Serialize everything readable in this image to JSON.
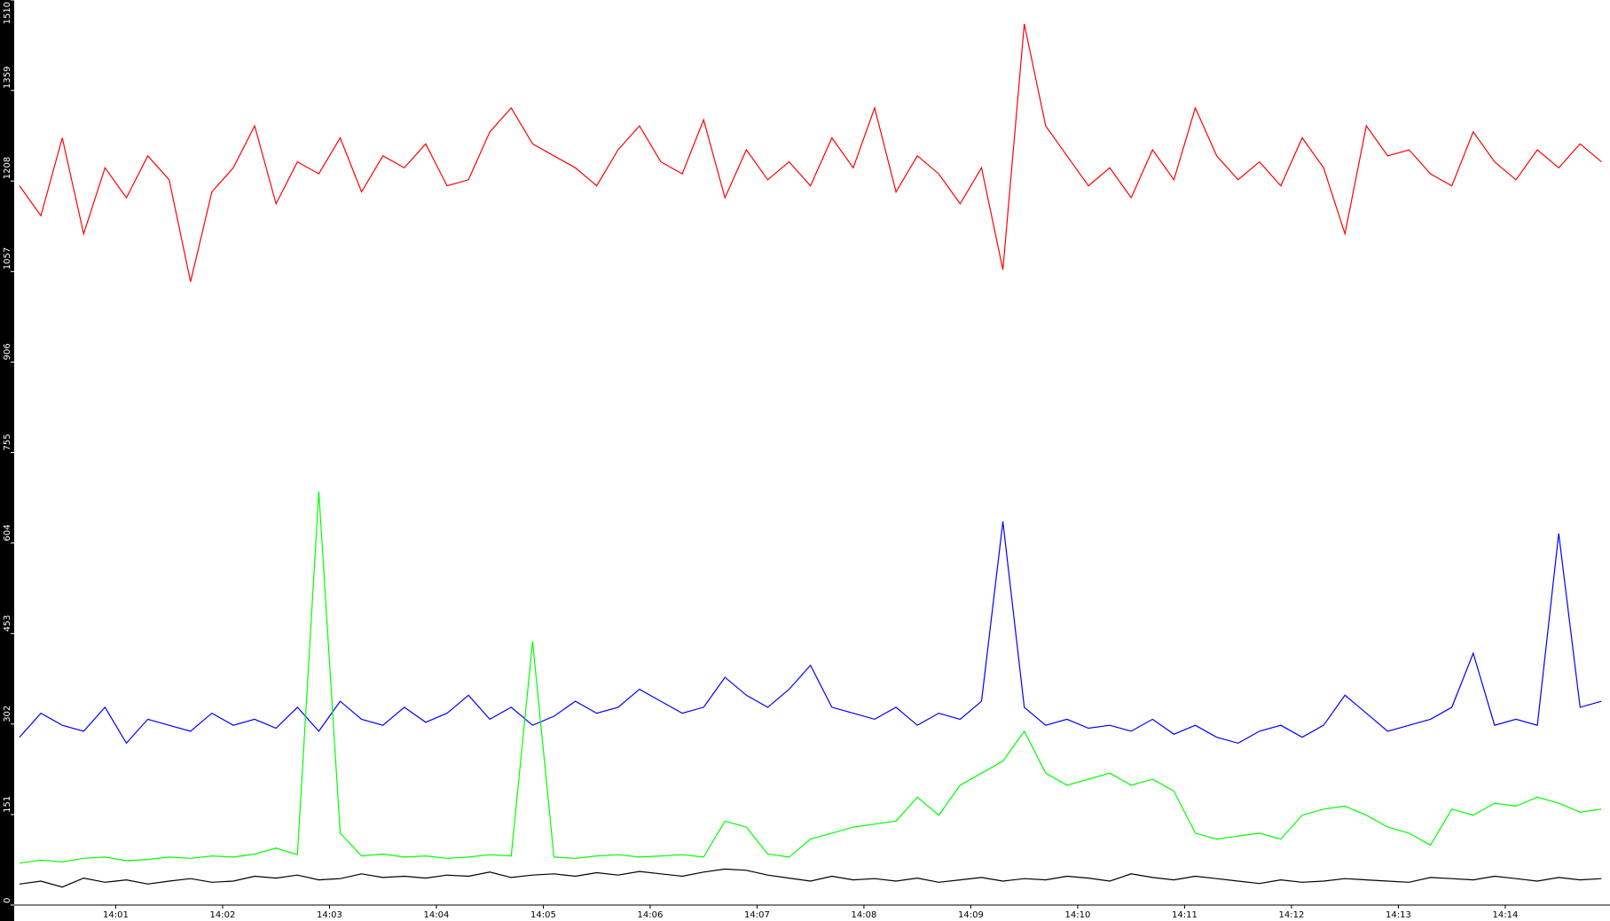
{
  "chart_data": {
    "type": "line",
    "x": [
      0.1,
      0.3,
      0.5,
      0.7,
      0.9,
      1.1,
      1.3,
      1.5,
      1.7,
      1.9,
      2.1,
      2.3,
      2.5,
      2.7,
      2.9,
      3.1,
      3.3,
      3.5,
      3.7,
      3.9,
      4.1,
      4.3,
      4.5,
      4.7,
      4.9,
      5.1,
      5.3,
      5.5,
      5.7,
      5.9,
      6.1,
      6.3,
      6.5,
      6.7,
      6.9,
      7.1,
      7.3,
      7.5,
      7.7,
      7.9,
      8.1,
      8.3,
      8.5,
      8.7,
      8.9,
      9.1,
      9.3,
      9.5,
      9.7,
      9.9,
      10.1,
      10.3,
      10.5,
      10.7,
      10.9,
      11.1,
      11.3,
      11.5,
      11.7,
      11.9,
      12.1,
      12.3,
      12.5,
      12.7,
      12.9,
      13.1,
      13.3,
      13.5,
      13.7,
      13.9,
      14.1,
      14.3,
      14.5,
      14.7,
      14.9
    ],
    "series": [
      {
        "color": "#ff0000",
        "values": [
          1200,
          1150,
          1280,
          1120,
          1230,
          1180,
          1250,
          1210,
          1040,
          1190,
          1230,
          1300,
          1170,
          1240,
          1220,
          1280,
          1190,
          1250,
          1230,
          1270,
          1200,
          1210,
          1290,
          1330,
          1270,
          1250,
          1230,
          1200,
          1260,
          1300,
          1240,
          1220,
          1310,
          1180,
          1260,
          1210,
          1240,
          1200,
          1280,
          1230,
          1330,
          1190,
          1250,
          1220,
          1170,
          1230,
          1060,
          1470,
          1300,
          1250,
          1200,
          1230,
          1180,
          1260,
          1210,
          1330,
          1250,
          1210,
          1240,
          1200,
          1280,
          1230,
          1120,
          1300,
          1250,
          1260,
          1220,
          1200,
          1290,
          1240,
          1210,
          1260,
          1230,
          1270,
          1240
        ]
      },
      {
        "color": "#0000ff",
        "values": [
          280,
          320,
          300,
          290,
          330,
          270,
          310,
          300,
          290,
          320,
          300,
          310,
          295,
          330,
          290,
          340,
          310,
          300,
          330,
          305,
          320,
          350,
          310,
          330,
          300,
          315,
          340,
          320,
          330,
          360,
          340,
          320,
          330,
          380,
          350,
          330,
          360,
          400,
          330,
          320,
          310,
          330,
          300,
          320,
          310,
          340,
          640,
          330,
          300,
          310,
          295,
          300,
          290,
          310,
          285,
          300,
          280,
          270,
          290,
          300,
          280,
          300,
          350,
          320,
          290,
          300,
          310,
          330,
          420,
          300,
          310,
          300,
          620,
          330,
          340
        ]
      },
      {
        "color": "#00ff00",
        "values": [
          70,
          75,
          72,
          78,
          80,
          74,
          76,
          80,
          78,
          82,
          80,
          85,
          95,
          84,
          690,
          120,
          82,
          85,
          80,
          82,
          78,
          80,
          84,
          82,
          440,
          80,
          78,
          82,
          84,
          80,
          82,
          84,
          80,
          140,
          130,
          85,
          80,
          110,
          120,
          130,
          135,
          140,
          180,
          150,
          200,
          220,
          240,
          290,
          220,
          200,
          210,
          220,
          200,
          210,
          190,
          120,
          110,
          115,
          120,
          110,
          150,
          160,
          165,
          150,
          130,
          120,
          100,
          160,
          150,
          170,
          165,
          180,
          170,
          155,
          160
        ]
      },
      {
        "color": "#000000",
        "values": [
          35,
          40,
          30,
          45,
          38,
          42,
          35,
          40,
          44,
          38,
          40,
          48,
          45,
          50,
          42,
          44,
          52,
          46,
          48,
          45,
          50,
          48,
          55,
          46,
          50,
          52,
          48,
          54,
          50,
          56,
          52,
          48,
          55,
          60,
          58,
          50,
          45,
          40,
          48,
          42,
          44,
          40,
          45,
          38,
          42,
          46,
          40,
          44,
          42,
          48,
          45,
          40,
          52,
          46,
          42,
          48,
          44,
          40,
          36,
          42,
          38,
          40,
          44,
          42,
          40,
          38,
          46,
          44,
          42,
          48,
          44,
          40,
          46,
          42,
          44
        ]
      }
    ],
    "xlim": [
      0.05,
      14.98
    ],
    "xticks": [
      {
        "value": 1,
        "label": "14:01"
      },
      {
        "value": 2,
        "label": "14:02"
      },
      {
        "value": 3,
        "label": "14:03"
      },
      {
        "value": 4,
        "label": "14:04"
      },
      {
        "value": 5,
        "label": "14:05"
      },
      {
        "value": 6,
        "label": "14:06"
      },
      {
        "value": 7,
        "label": "14:07"
      },
      {
        "value": 8,
        "label": "14:08"
      },
      {
        "value": 9,
        "label": "14:09"
      },
      {
        "value": 10,
        "label": "14:10"
      },
      {
        "value": 11,
        "label": "14:11"
      },
      {
        "value": 12,
        "label": "14:12"
      },
      {
        "value": 13,
        "label": "14:13"
      },
      {
        "value": 14,
        "label": "14:14"
      }
    ],
    "ylim": [
      0,
      1510
    ],
    "yticks": [
      0,
      151,
      302,
      453,
      604,
      755,
      906,
      1057,
      1208,
      1359,
      1510
    ],
    "grid": false
  }
}
